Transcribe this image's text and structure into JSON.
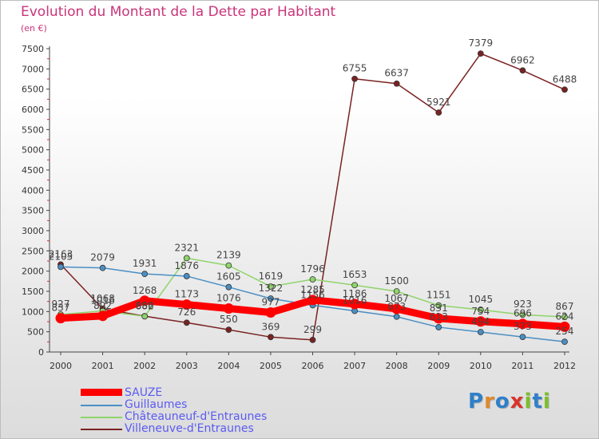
{
  "title": "Evolution du Montant de la Dette par Habitant",
  "unit_label": "(en €)",
  "logo": {
    "text": "Proxiti",
    "letters": [
      "P",
      "r",
      "o",
      "x",
      "i",
      "t",
      "i"
    ],
    "colors": [
      "#2f7fc9",
      "#e0892b",
      "#2f7fc9",
      "#d9342b",
      "#7bbf2a",
      "#2f7fc9",
      "#7bbf2a"
    ]
  },
  "colors": {
    "title": "#c9347a",
    "legend_text": "#5b5bf2",
    "axis_text": "#333333",
    "value_text": "#444444"
  },
  "chart_data": {
    "type": "line",
    "title": "Evolution du Montant de la Dette par Habitant",
    "subtitle": "(en €)",
    "x": [
      "2000",
      "2001",
      "2002",
      "2003",
      "2004",
      "2005",
      "2006",
      "2007",
      "2008",
      "2009",
      "2010",
      "2011",
      "2012"
    ],
    "ylim": [
      0,
      7500
    ],
    "yticks": [
      0,
      500,
      1000,
      1500,
      2000,
      2500,
      3000,
      3500,
      4000,
      4500,
      5000,
      5500,
      6000,
      6500,
      7000,
      7500
    ],
    "grid": false,
    "legend_position": "bottom-left",
    "series": [
      {
        "name": "SAUZE",
        "color": "#ff0000",
        "width": 9,
        "values": [
          837,
          892,
          1268,
          1173,
          1076,
          977,
          1285,
          1186,
          1067,
          831,
          754,
          696,
          624
        ],
        "labels": [
          "837",
          "892",
          "1268",
          "1173",
          "1076",
          "977",
          "1285",
          "1186",
          "1067",
          "831",
          "754",
          "696",
          "624"
        ]
      },
      {
        "name": "Guillaumes",
        "color": "#4a8fc4",
        "width": 1.5,
        "values": [
          2105,
          2079,
          1931,
          1876,
          1605,
          1322,
          1156,
          1016,
          873,
          613,
          494,
          373,
          254
        ],
        "labels": [
          "2105",
          "2079",
          "1931",
          "1876",
          "1605",
          "1322",
          "1156",
          "1016",
          "873",
          "613",
          "494",
          "373",
          "254"
        ]
      },
      {
        "name": "Châteauneuf-d'Entraunes",
        "color": "#8fd46a",
        "width": 1.5,
        "values": [
          927,
          1016,
          882,
          2321,
          2139,
          1619,
          1796,
          1653,
          1500,
          1151,
          1045,
          923,
          867
        ],
        "labels": [
          "927",
          "1016",
          "882",
          "2321",
          "2139",
          "1619",
          "1796",
          "1653",
          "1500",
          "1151",
          "1045",
          "923",
          "867"
        ]
      },
      {
        "name": "Villeneuve-d'Entraunes",
        "color": "#7a2222",
        "width": 1.5,
        "values": [
          2163,
          1068,
          886,
          726,
          550,
          369,
          299,
          6755,
          6637,
          5921,
          7379,
          6962,
          6488
        ],
        "labels": [
          "2163",
          "1068",
          "886",
          "726",
          "550",
          "369",
          "299",
          "6755",
          "6637",
          "5921",
          "7379",
          "6962",
          "6488"
        ]
      }
    ]
  }
}
